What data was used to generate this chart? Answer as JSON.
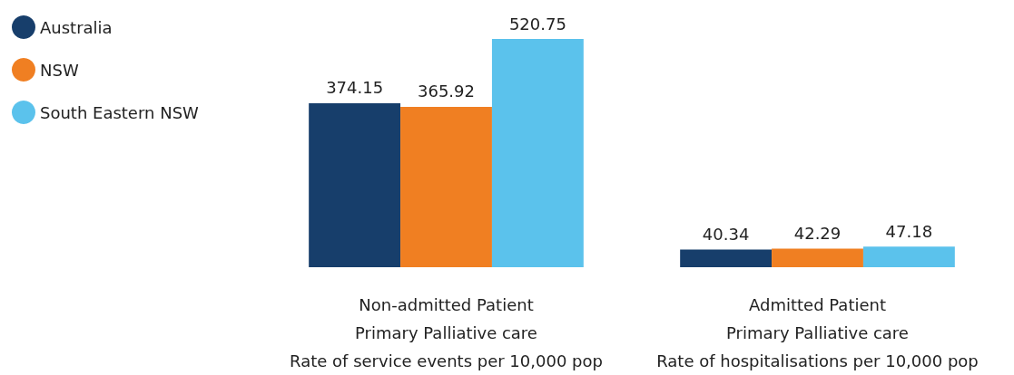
{
  "chart_data": {
    "type": "bar",
    "categories": [
      "Non-admitted Patient\nPrimary Palliative care\nRate of service events per 10,000 pop",
      "Admitted Patient\nPrimary Palliative care\nRate of hospitalisations per 10,000 pop"
    ],
    "series": [
      {
        "name": "Australia",
        "color": "#173e6b",
        "values": [
          374.15,
          40.34
        ]
      },
      {
        "name": "NSW",
        "color": "#f07f22",
        "values": [
          365.92,
          42.29
        ]
      },
      {
        "name": "South Eastern NSW",
        "color": "#5bc2ec",
        "values": [
          520.75,
          47.18
        ]
      }
    ],
    "data_labels": true,
    "legend": "top left",
    "grid": false,
    "marker": "circle"
  }
}
